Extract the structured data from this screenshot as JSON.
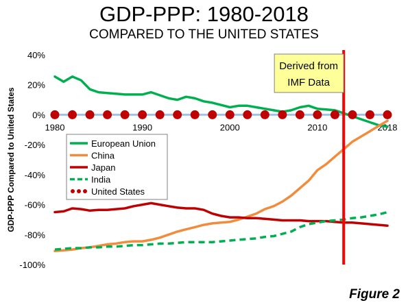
{
  "figure_label": "Figure 2",
  "chart_data": {
    "type": "line",
    "title": "GDP-PPP: 1980-2018",
    "subtitle": "COMPARED TO THE UNITED STATES",
    "xlabel": "",
    "ylabel": "GDP-PPP Compared to United States",
    "xlim": [
      1980,
      2018
    ],
    "ylim": [
      -100,
      40
    ],
    "x_ticks": [
      1980,
      1990,
      2000,
      2010,
      2018
    ],
    "x_tick_labels": [
      "1980",
      "1990",
      "2000",
      "2010",
      "2018"
    ],
    "y_ticks": [
      40,
      20,
      0,
      -20,
      -40,
      -60,
      -80,
      -100
    ],
    "y_tick_labels": [
      "40%",
      "20%",
      "0%",
      "-20%",
      "-40%",
      "-60%",
      "-80%",
      "-100%"
    ],
    "grid": false,
    "legend_position": "left",
    "x": [
      1980,
      1981,
      1982,
      1983,
      1984,
      1985,
      1986,
      1987,
      1988,
      1989,
      1990,
      1991,
      1992,
      1993,
      1994,
      1995,
      1996,
      1997,
      1998,
      1999,
      2000,
      2001,
      2002,
      2003,
      2004,
      2005,
      2006,
      2007,
      2008,
      2009,
      2010,
      2011,
      2012,
      2013,
      2014,
      2015,
      2016,
      2017,
      2018
    ],
    "series": [
      {
        "name": "European Union",
        "color": "#00b050",
        "style": "solid",
        "values": [
          25.5,
          22,
          25.5,
          23,
          17,
          15,
          14.5,
          14,
          13.5,
          13.5,
          13.5,
          15,
          13,
          11,
          10,
          12,
          11,
          9,
          8,
          6.5,
          5,
          6,
          6,
          5,
          4,
          3,
          2,
          3,
          5,
          6,
          4,
          3.5,
          3,
          1,
          -1,
          -3,
          -5,
          -7,
          -8
        ]
      },
      {
        "name": "China",
        "color": "#f08c3c",
        "style": "solid",
        "values": [
          -91,
          -90.5,
          -90,
          -89,
          -88.5,
          -87.5,
          -86.5,
          -86,
          -85,
          -84.5,
          -84.5,
          -83.5,
          -82,
          -80,
          -78,
          -76.5,
          -75,
          -73.5,
          -72.5,
          -72,
          -71.5,
          -70,
          -68,
          -66,
          -63,
          -61,
          -58,
          -54,
          -49,
          -44,
          -37,
          -33,
          -28,
          -23,
          -18,
          -14.5,
          -11,
          -7.5,
          -4
        ]
      },
      {
        "name": "Japan",
        "color": "#c00000",
        "style": "solid",
        "values": [
          -65,
          -64.5,
          -62.5,
          -63,
          -64,
          -63.5,
          -63.5,
          -63,
          -62.5,
          -61,
          -60,
          -59,
          -60,
          -61,
          -62,
          -62.5,
          -62.5,
          -63.5,
          -66,
          -67.5,
          -68.5,
          -68.5,
          -69,
          -69,
          -69.5,
          -70,
          -70.5,
          -70.5,
          -70.5,
          -71,
          -71,
          -71,
          -71.5,
          -72,
          -72,
          -72.5,
          -73,
          -73.5,
          -74
        ]
      },
      {
        "name": "India",
        "color": "#00b050",
        "style": "dashed",
        "values": [
          -90,
          -89.5,
          -89,
          -89,
          -88.5,
          -88.5,
          -88,
          -88,
          -87.5,
          -87,
          -87,
          -86.5,
          -86,
          -86,
          -85.5,
          -85,
          -85,
          -85,
          -85,
          -84.5,
          -84,
          -83.5,
          -83,
          -82.5,
          -81.5,
          -81,
          -79.5,
          -78,
          -75,
          -73,
          -72,
          -71,
          -70.5,
          -70,
          -69,
          -68.5,
          -67.5,
          -66.5,
          -65
        ]
      },
      {
        "name": "United States",
        "color": "#c00000",
        "style": "dots",
        "values": [
          0,
          0,
          0,
          0,
          0,
          0,
          0,
          0,
          0,
          0,
          0,
          0,
          0,
          0,
          0,
          0,
          0,
          0,
          0,
          0,
          0,
          0,
          0,
          0,
          0,
          0,
          0,
          0,
          0,
          0,
          0,
          0,
          0,
          0,
          0,
          0,
          0,
          0,
          0
        ],
        "marker_x": [
          1980,
          1982,
          1984,
          1986,
          1988,
          1990,
          1992,
          1994,
          1996,
          1998,
          2000,
          2002,
          2004,
          2006,
          2008,
          2010,
          2012,
          2014,
          2016,
          2018
        ]
      }
    ],
    "vertical_line": {
      "x": 2013,
      "color": "#ff0000"
    },
    "annotation": {
      "lines": [
        "Derived from",
        "IMF Data"
      ],
      "x": 2009,
      "y": 35,
      "background": "#ffff99"
    },
    "zero_line_color": "#9dc3e6"
  }
}
